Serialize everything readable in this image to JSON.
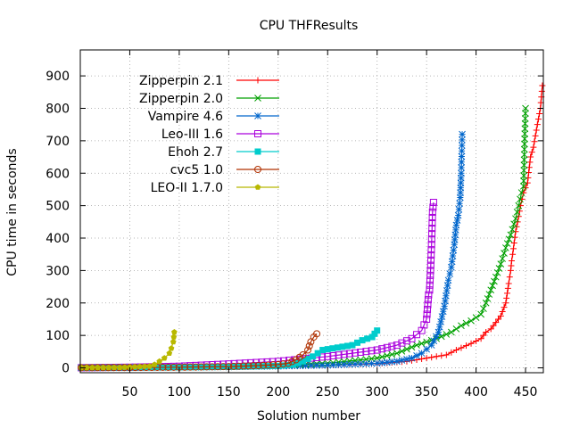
{
  "chart_data": {
    "type": "line",
    "title": "CPU THFResults",
    "xlabel": "Solution number",
    "ylabel": "CPU time in seconds",
    "xlim": [
      0,
      468
    ],
    "ylim": [
      -15,
      980
    ],
    "xticks": [
      50,
      100,
      150,
      200,
      250,
      300,
      350,
      400,
      450
    ],
    "yticks": [
      0,
      100,
      200,
      300,
      400,
      500,
      600,
      700,
      800,
      900
    ],
    "grid": true,
    "legend_position": "top-left",
    "series": [
      {
        "name": "Zipperpin 2.1",
        "color": "#ff0000",
        "marker": "plus",
        "points": [
          [
            1,
            0.5
          ],
          [
            50,
            1
          ],
          [
            100,
            2
          ],
          [
            150,
            3
          ],
          [
            200,
            5
          ],
          [
            250,
            8
          ],
          [
            300,
            13
          ],
          [
            330,
            20
          ],
          [
            350,
            30
          ],
          [
            370,
            40
          ],
          [
            380,
            55
          ],
          [
            395,
            75
          ],
          [
            405,
            90
          ],
          [
            410,
            110
          ],
          [
            415,
            120
          ],
          [
            420,
            140
          ],
          [
            425,
            160
          ],
          [
            430,
            200
          ],
          [
            433,
            260
          ],
          [
            435,
            300
          ],
          [
            436,
            330
          ],
          [
            437,
            350
          ],
          [
            440,
            420
          ],
          [
            442,
            450
          ],
          [
            445,
            500
          ],
          [
            448,
            540
          ],
          [
            452,
            570
          ],
          [
            455,
            650
          ],
          [
            458,
            680
          ],
          [
            462,
            750
          ],
          [
            465,
            800
          ],
          [
            467,
            870
          ]
        ]
      },
      {
        "name": "Zipperpin 2.0",
        "color": "#00a000",
        "marker": "cross",
        "points": [
          [
            1,
            0.5
          ],
          [
            50,
            1
          ],
          [
            100,
            2
          ],
          [
            150,
            3
          ],
          [
            200,
            6
          ],
          [
            250,
            14
          ],
          [
            300,
            30
          ],
          [
            320,
            45
          ],
          [
            340,
            70
          ],
          [
            360,
            90
          ],
          [
            375,
            110
          ],
          [
            385,
            130
          ],
          [
            395,
            145
          ],
          [
            405,
            165
          ],
          [
            410,
            200
          ],
          [
            415,
            240
          ],
          [
            420,
            280
          ],
          [
            425,
            320
          ],
          [
            430,
            370
          ],
          [
            435,
            410
          ],
          [
            440,
            460
          ],
          [
            443,
            500
          ],
          [
            446,
            540
          ],
          [
            448,
            560
          ],
          [
            449,
            690
          ],
          [
            450,
            800
          ]
        ]
      },
      {
        "name": "Vampire 4.6",
        "color": "#0066cc",
        "marker": "star",
        "points": [
          [
            1,
            0.5
          ],
          [
            50,
            1
          ],
          [
            100,
            2
          ],
          [
            150,
            3
          ],
          [
            200,
            5
          ],
          [
            250,
            8
          ],
          [
            300,
            14
          ],
          [
            320,
            20
          ],
          [
            335,
            30
          ],
          [
            345,
            45
          ],
          [
            355,
            70
          ],
          [
            362,
            110
          ],
          [
            368,
            190
          ],
          [
            372,
            270
          ],
          [
            375,
            310
          ],
          [
            378,
            380
          ],
          [
            380,
            440
          ],
          [
            382,
            470
          ],
          [
            384,
            525
          ],
          [
            385,
            600
          ],
          [
            386,
            720
          ]
        ]
      },
      {
        "name": "Leo-III 1.6",
        "color": "#aa00dd",
        "marker": "box",
        "points": [
          [
            1,
            0.5
          ],
          [
            50,
            2
          ],
          [
            100,
            5
          ],
          [
            150,
            12
          ],
          [
            200,
            20
          ],
          [
            250,
            35
          ],
          [
            300,
            55
          ],
          [
            320,
            70
          ],
          [
            335,
            90
          ],
          [
            345,
            115
          ],
          [
            350,
            150
          ],
          [
            352,
            225
          ],
          [
            353,
            240
          ],
          [
            354,
            300
          ],
          [
            355,
            380
          ],
          [
            356,
            480
          ],
          [
            357,
            510
          ]
        ]
      },
      {
        "name": "Ehoh 2.7",
        "color": "#00cccc",
        "marker": "filled-box",
        "points": [
          [
            1,
            0.5
          ],
          [
            50,
            1
          ],
          [
            100,
            2
          ],
          [
            150,
            3
          ],
          [
            200,
            6
          ],
          [
            215,
            10
          ],
          [
            225,
            20
          ],
          [
            235,
            35
          ],
          [
            245,
            55
          ],
          [
            255,
            60
          ],
          [
            265,
            65
          ],
          [
            275,
            70
          ],
          [
            285,
            85
          ],
          [
            295,
            95
          ],
          [
            300,
            115
          ]
        ]
      },
      {
        "name": "cvc5 1.0",
        "color": "#b03000",
        "marker": "circle",
        "points": [
          [
            1,
            0.5
          ],
          [
            50,
            1
          ],
          [
            100,
            2
          ],
          [
            150,
            4
          ],
          [
            180,
            7
          ],
          [
            200,
            10
          ],
          [
            210,
            14
          ],
          [
            218,
            25
          ],
          [
            225,
            40
          ],
          [
            230,
            55
          ],
          [
            233,
            80
          ],
          [
            236,
            95
          ],
          [
            239,
            105
          ]
        ]
      },
      {
        "name": "LEO-II 1.7.0",
        "color": "#b8b800",
        "marker": "filled-pentagon",
        "points": [
          [
            1,
            0.5
          ],
          [
            40,
            1
          ],
          [
            70,
            5
          ],
          [
            75,
            10
          ],
          [
            80,
            20
          ],
          [
            85,
            30
          ],
          [
            90,
            45
          ],
          [
            92,
            60
          ],
          [
            94,
            80
          ],
          [
            95,
            110
          ]
        ]
      }
    ]
  }
}
